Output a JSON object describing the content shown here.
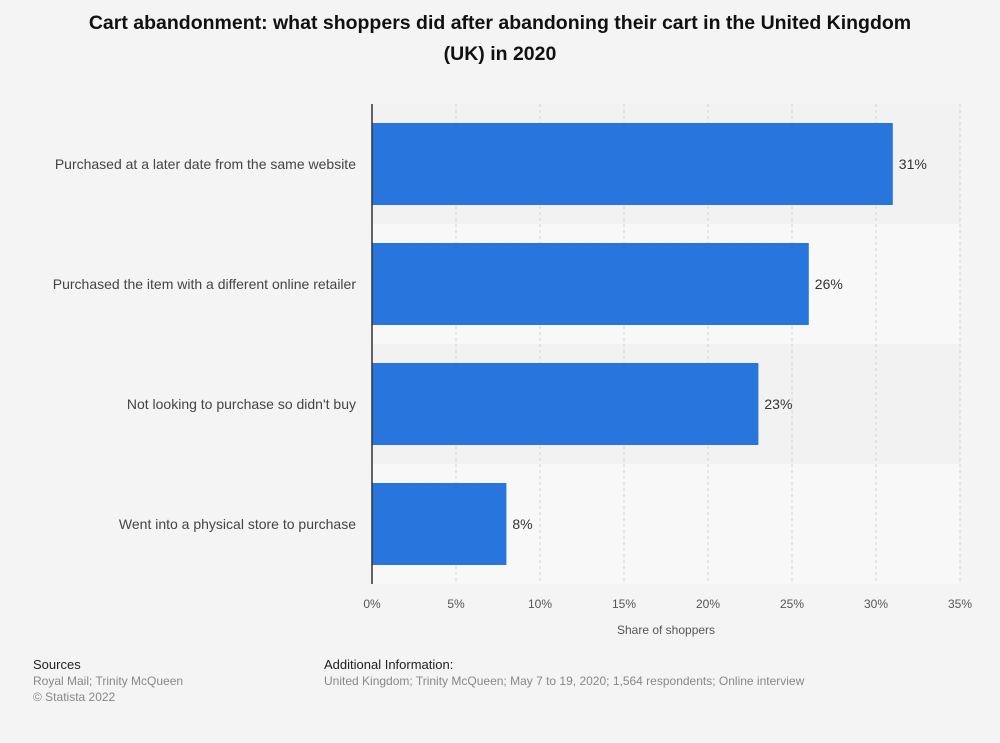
{
  "title": "Cart abandonment: what shoppers did after abandoning their cart in the United Kingdom (UK) in 2020",
  "chart_data": {
    "type": "bar",
    "orientation": "horizontal",
    "categories": [
      "Purchased at a later date from the same website",
      "Purchased the item with a different online retailer",
      "Not looking to purchase so didn't buy",
      "Went into a physical store to purchase"
    ],
    "values": [
      31,
      26,
      23,
      8
    ],
    "value_labels": [
      "31%",
      "26%",
      "23%",
      "8%"
    ],
    "xlabel": "Share of shoppers",
    "xlim": [
      0,
      35
    ],
    "ticks": [
      0,
      5,
      10,
      15,
      20,
      25,
      30,
      35
    ],
    "tick_labels": [
      "0%",
      "5%",
      "10%",
      "15%",
      "20%",
      "25%",
      "30%",
      "35%"
    ],
    "grid": true,
    "bar_color": "#2876dd"
  },
  "footer": {
    "sources_heading": "Sources",
    "sources_line1": "Royal Mail; Trinity McQueen",
    "sources_line2": "© Statista 2022",
    "info_heading": "Additional Information:",
    "info_text": "United Kingdom; Trinity McQueen; May 7 to 19, 2020; 1,564 respondents; Online interview"
  }
}
